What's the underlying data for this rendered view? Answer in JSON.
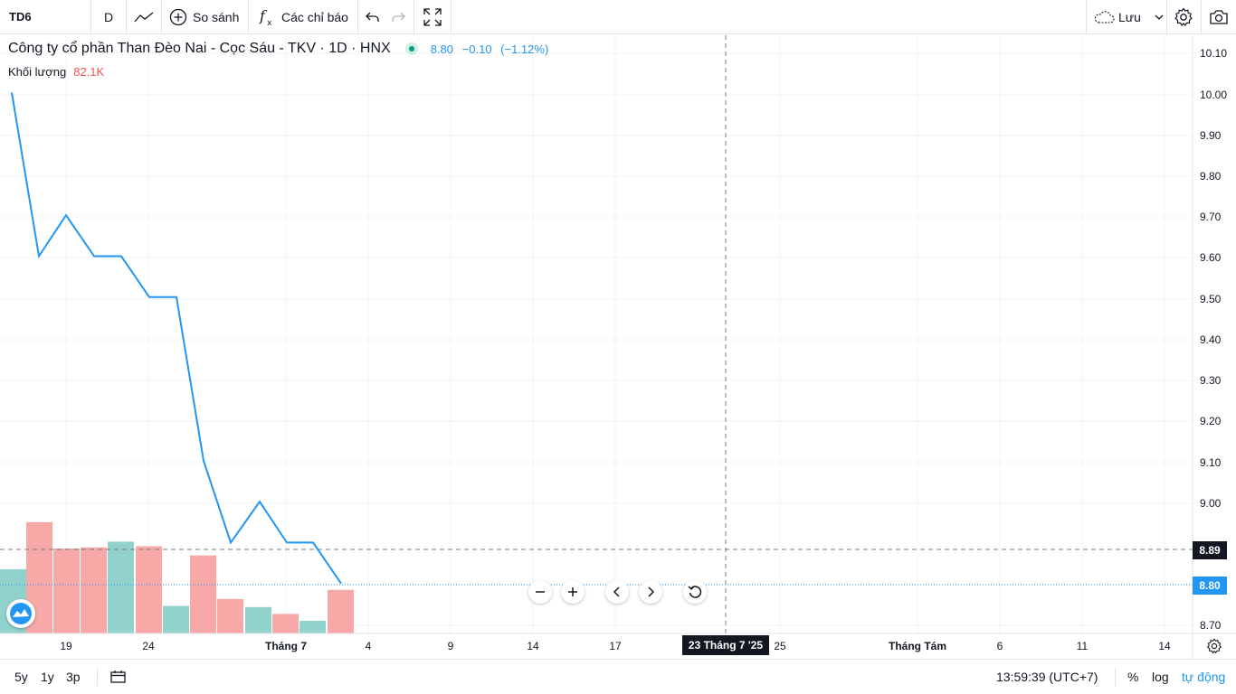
{
  "toolbar": {
    "symbol": "TD6",
    "interval": "D",
    "compare_label": "So sánh",
    "indicators_label": "Các chỉ báo",
    "save_label": "Lưu"
  },
  "legend": {
    "title": "Công ty cổ phần Than Đèo Nai - Cọc Sáu - TKV · 1D · HNX",
    "price": "8.80",
    "change": "−0.10",
    "change_pct": "(−1.12%)",
    "volume_label": "Khối lượng",
    "volume_value": "82.1K"
  },
  "crosshair": {
    "price_label": "8.89",
    "date_label": "23 Tháng 7 '25"
  },
  "last_price_label": "8.80",
  "bottombar": {
    "ranges": [
      "5y",
      "1y",
      "3p"
    ],
    "clock": "13:59:39 (UTC+7)",
    "percent_label": "%",
    "log_label": "log",
    "auto_label": "tự động"
  },
  "colors": {
    "line": "#2196f3",
    "volume_up": "#92d2cc",
    "volume_down": "#f7a9a7",
    "crosshair_label_bg": "#131722",
    "last_price_bg": "#2196f3"
  },
  "chart_data": {
    "type": "line",
    "price_axis_ticks": [
      "10.10",
      "10.00",
      "9.90",
      "9.80",
      "9.70",
      "9.60",
      "9.50",
      "9.40",
      "9.30",
      "9.20",
      "9.10",
      "9.00",
      "8.80",
      "8.70"
    ],
    "time_axis_ticks": [
      "19",
      "24",
      "Tháng 7",
      "4",
      "9",
      "14",
      "17",
      "25",
      "Tháng Tám",
      "6",
      "11",
      "14"
    ],
    "ylim": [
      8.7,
      10.1
    ],
    "series": [
      {
        "values": [
          10.0,
          10.0,
          9.6,
          9.7,
          9.6,
          9.6,
          9.5,
          9.5,
          9.1,
          8.9,
          9.0,
          8.9,
          8.9,
          8.8
        ]
      }
    ],
    "volume": {
      "directions": [
        "up",
        "down",
        "down",
        "down",
        "up",
        "down",
        "up",
        "down",
        "down",
        "up",
        "down",
        "up",
        "down"
      ],
      "relative_heights": [
        0.56,
        0.97,
        0.74,
        0.75,
        0.8,
        0.76,
        0.24,
        0.68,
        0.3,
        0.23,
        0.17,
        0.11,
        0.38
      ]
    }
  }
}
